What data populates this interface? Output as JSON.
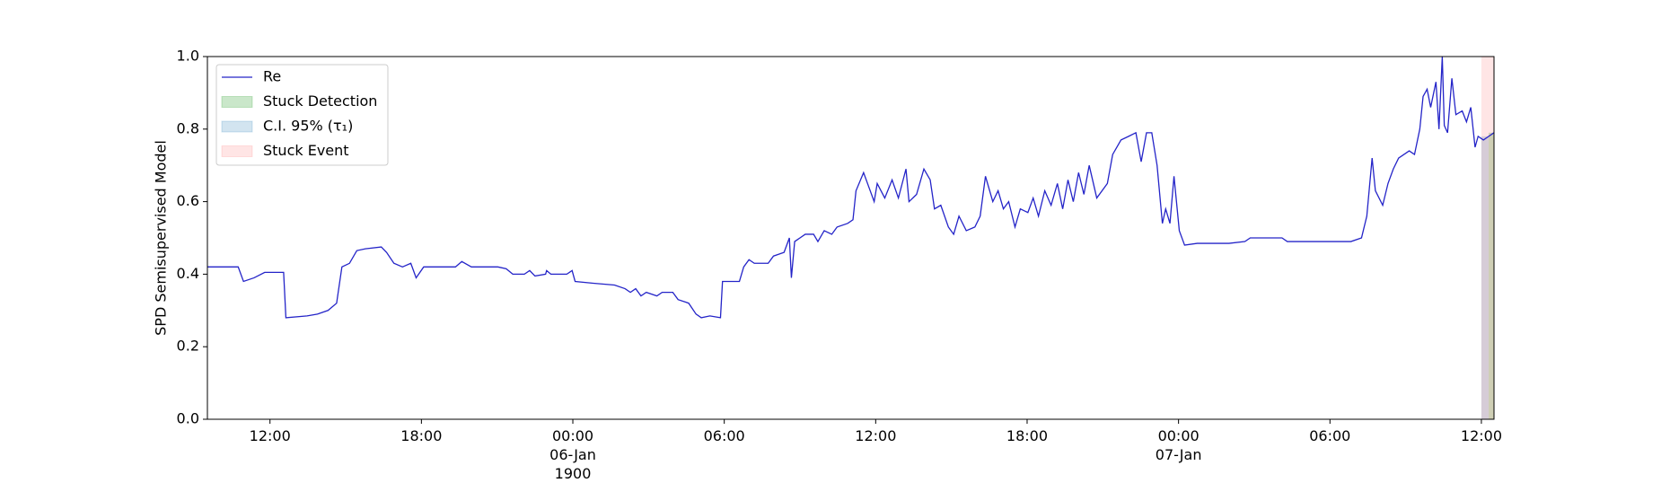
{
  "chart_data": {
    "type": "line",
    "ylabel": "SPD Semisupervised Model",
    "x": [
      9.52,
      10.74,
      10.95,
      11.37,
      11.79,
      12.54,
      12.63,
      13.47,
      13.88,
      14.3,
      14.64,
      14.85,
      15.15,
      15.44,
      15.78,
      16.41,
      16.62,
      16.91,
      17.25,
      17.58,
      17.79,
      18.09,
      19.35,
      19.6,
      19.98,
      21.03,
      21.36,
      21.62,
      22.08,
      22.29,
      22.5,
      22.92,
      22.96,
      23.13,
      23.76,
      23.97,
      24.09,
      24.81,
      25.65,
      26.07,
      26.28,
      26.49,
      26.7,
      26.91,
      27.33,
      27.54,
      27.96,
      28.17,
      28.59,
      28.88,
      29.09,
      29.43,
      29.85,
      29.93,
      30.27,
      30.6,
      30.77,
      30.98,
      31.19,
      31.74,
      31.95,
      32.37,
      32.58,
      32.66,
      32.79,
      33.21,
      33.54,
      33.71,
      33.96,
      34.26,
      34.47,
      34.89,
      35.1,
      35.22,
      35.52,
      35.73,
      35.94,
      36.06,
      36.36,
      36.65,
      36.9,
      37.2,
      37.32,
      37.62,
      37.91,
      38.16,
      38.33,
      38.58,
      38.88,
      39.09,
      39.3,
      39.59,
      39.93,
      40.14,
      40.35,
      40.64,
      40.85,
      41.06,
      41.27,
      41.52,
      41.73,
      42.03,
      42.24,
      42.45,
      42.7,
      42.95,
      43.2,
      43.41,
      43.62,
      43.83,
      44.04,
      44.25,
      44.46,
      44.76,
      45.18,
      45.39,
      45.72,
      46.02,
      46.31,
      46.52,
      46.73,
      46.94,
      47.15,
      47.36,
      47.49,
      47.66,
      47.82,
      48.03,
      48.24,
      48.74,
      50.0,
      50.63,
      50.84,
      52.1,
      52.31,
      52.73,
      53.36,
      54.83,
      55.25,
      55.46,
      55.67,
      55.8,
      56.09,
      56.3,
      56.51,
      56.72,
      57.14,
      57.35,
      57.56,
      57.69,
      57.85,
      57.99,
      58.2,
      58.32,
      58.45,
      58.53,
      58.66,
      58.83,
      58.99,
      59.24,
      59.41,
      59.58,
      59.75,
      59.87,
      60.08,
      60.29,
      60.5
    ],
    "series": [
      {
        "name": "Re",
        "color": "#2424c8",
        "values": [
          0.42,
          0.42,
          0.38,
          0.39,
          0.405,
          0.405,
          0.28,
          0.285,
          0.29,
          0.3,
          0.32,
          0.42,
          0.43,
          0.465,
          0.47,
          0.475,
          0.46,
          0.43,
          0.42,
          0.43,
          0.39,
          0.42,
          0.42,
          0.435,
          0.42,
          0.42,
          0.415,
          0.4,
          0.4,
          0.41,
          0.395,
          0.4,
          0.41,
          0.4,
          0.4,
          0.41,
          0.38,
          0.375,
          0.37,
          0.36,
          0.35,
          0.36,
          0.34,
          0.35,
          0.34,
          0.35,
          0.35,
          0.33,
          0.32,
          0.29,
          0.28,
          0.285,
          0.28,
          0.38,
          0.38,
          0.38,
          0.42,
          0.44,
          0.43,
          0.43,
          0.45,
          0.46,
          0.5,
          0.39,
          0.49,
          0.51,
          0.51,
          0.49,
          0.52,
          0.51,
          0.53,
          0.54,
          0.55,
          0.63,
          0.68,
          0.64,
          0.6,
          0.65,
          0.61,
          0.66,
          0.61,
          0.69,
          0.6,
          0.62,
          0.69,
          0.66,
          0.58,
          0.59,
          0.53,
          0.51,
          0.56,
          0.52,
          0.53,
          0.56,
          0.67,
          0.6,
          0.63,
          0.58,
          0.6,
          0.53,
          0.58,
          0.57,
          0.61,
          0.56,
          0.63,
          0.59,
          0.65,
          0.58,
          0.66,
          0.6,
          0.68,
          0.62,
          0.7,
          0.61,
          0.65,
          0.73,
          0.77,
          0.78,
          0.79,
          0.71,
          0.79,
          0.79,
          0.7,
          0.54,
          0.58,
          0.54,
          0.67,
          0.52,
          0.48,
          0.485,
          0.485,
          0.49,
          0.5,
          0.5,
          0.49,
          0.49,
          0.49,
          0.49,
          0.5,
          0.56,
          0.72,
          0.63,
          0.59,
          0.65,
          0.69,
          0.72,
          0.74,
          0.73,
          0.8,
          0.89,
          0.91,
          0.86,
          0.93,
          0.8,
          1.0,
          0.81,
          0.79,
          0.94,
          0.84,
          0.85,
          0.82,
          0.86,
          0.75,
          0.78,
          0.77,
          0.78,
          0.79
        ]
      }
    ],
    "spans": [
      {
        "name": "Stuck Detection",
        "color": "#2ca02c",
        "opacity": 0.25,
        "xrange": [
          60.29,
          60.5
        ],
        "yrange": [
          0,
          0.79
        ]
      },
      {
        "name": "C.I. 95% (τ₁)",
        "color": "#1f77b4",
        "opacity": 0.2,
        "xrange": [
          60.0,
          60.29
        ],
        "yrange": [
          0,
          0.78
        ]
      },
      {
        "name": "Stuck Event",
        "color": "#ff0000",
        "opacity": 0.1,
        "xrange": [
          60.0,
          60.5
        ],
        "yrange": [
          0,
          1.0
        ]
      }
    ],
    "xlim": [
      9.52,
      60.5
    ],
    "xticks": [
      {
        "value": 12,
        "label": "12:00"
      },
      {
        "value": 18,
        "label": "18:00"
      },
      {
        "value": 24,
        "label": "00:00\n06-Jan\n1900"
      },
      {
        "value": 30,
        "label": "06:00"
      },
      {
        "value": 36,
        "label": "12:00"
      },
      {
        "value": 42,
        "label": "18:00"
      },
      {
        "value": 48,
        "label": "00:00\n07-Jan"
      },
      {
        "value": 54,
        "label": "06:00"
      },
      {
        "value": 60,
        "label": "12:00"
      }
    ],
    "ylim": [
      0,
      1
    ],
    "yticks": [
      {
        "value": 0,
        "label": "0.0"
      },
      0.2,
      0.4,
      0.6,
      0.8,
      {
        "value": 1,
        "label": "1.0"
      }
    ],
    "legend": "upper left"
  }
}
